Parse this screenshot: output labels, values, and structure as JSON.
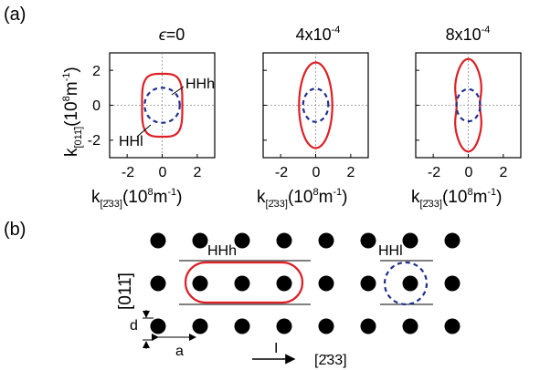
{
  "panel_a": {
    "label": "(a)"
  },
  "panel_b": {
    "label": "(b)"
  },
  "colors": {
    "outer_contour": "#dd1f26",
    "inner_contour": "#1f2f8c",
    "lattice": "#000000"
  },
  "chart_data": [
    {
      "type": "contour",
      "title_symbol": "ϵ",
      "title": "=0",
      "xlabel_main": "k",
      "xlabel_sub": "[2̄33]",
      "xlabel_units": "(10",
      "xlabel_exp": "8",
      "xlabel_units2": "m",
      "xlabel_exp2": "-1",
      "xlabel_close": ")",
      "ylabel_main": "k",
      "ylabel_sub": "[011̄]",
      "ylabel_units": "(10",
      "ylabel_exp": "8",
      "ylabel_units2": "m",
      "ylabel_exp2": "-1",
      "ylabel_close": ")",
      "xlim": [
        -3,
        3
      ],
      "ylim": [
        -3,
        3
      ],
      "xticks": [
        "-2",
        "0",
        "2"
      ],
      "yticks": [
        "2",
        "0",
        "-2"
      ],
      "annotations": [
        "HHh",
        "HHl"
      ],
      "series": [
        {
          "name": "HHh",
          "style": "solid",
          "color": "#dd1f26",
          "shape": "rounded-square",
          "a": 1.15,
          "b": 1.8,
          "n": 3.6
        },
        {
          "name": "HHl",
          "style": "dashed",
          "color": "#1f2f8c",
          "shape": "rounded-square",
          "a": 1.0,
          "b": 1.0,
          "n": 2.1
        }
      ]
    },
    {
      "type": "contour",
      "title": "4x10",
      "title_exp": "-4",
      "xlabel_main": "k",
      "xlabel_sub": "[2̄33]",
      "xlabel_units": "(10",
      "xlabel_exp": "8",
      "xlabel_units2": "m",
      "xlabel_exp2": "-1",
      "xlabel_close": ")",
      "xlim": [
        -3,
        3
      ],
      "ylim": [
        -3,
        3
      ],
      "xticks": [
        "-2",
        "0",
        "2"
      ],
      "series": [
        {
          "style": "solid",
          "color": "#dd1f26",
          "shape": "ellipse",
          "a": 0.95,
          "b": 2.45,
          "n": 2.0
        },
        {
          "style": "dashed",
          "color": "#1f2f8c",
          "shape": "ellipse",
          "a": 0.72,
          "b": 0.95,
          "n": 2.0
        }
      ]
    },
    {
      "type": "contour",
      "title": "8x10",
      "title_exp": "-4",
      "xlabel_main": "k",
      "xlabel_sub": "[2̄33]",
      "xlabel_units": "(10",
      "xlabel_exp": "8",
      "xlabel_units2": "m",
      "xlabel_exp2": "-1",
      "xlabel_close": ")",
      "xlim": [
        -3,
        3
      ],
      "ylim": [
        -3,
        3
      ],
      "xticks": [
        "-2",
        "0",
        "2"
      ],
      "series": [
        {
          "style": "solid",
          "color": "#dd1f26",
          "shape": "peanut",
          "a": 0.85,
          "b": 2.65,
          "n": 2.0
        },
        {
          "style": "dashed",
          "color": "#1f2f8c",
          "shape": "ellipse",
          "a": 0.68,
          "b": 0.92,
          "n": 2.0
        }
      ]
    }
  ],
  "lattice": {
    "rows": 3,
    "cols": 8,
    "label_HHh": "HHh",
    "label_HHl": "HHl",
    "label_y": "[011̄]",
    "label_d": "d",
    "label_a": "a",
    "label_current": "I",
    "label_x": "[2̄33]"
  }
}
